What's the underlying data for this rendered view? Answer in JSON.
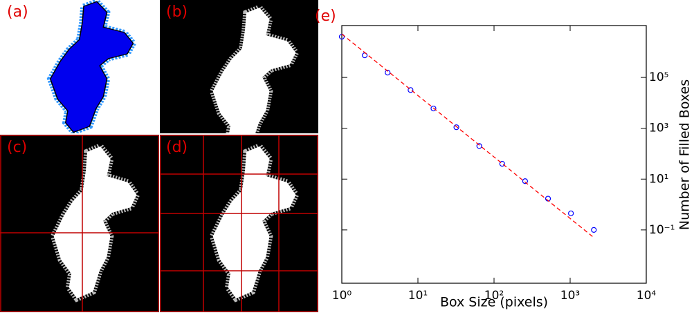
{
  "panels": [
    {
      "label": "(a)"
    },
    {
      "label": "(b)"
    },
    {
      "label": "(c)"
    },
    {
      "label": "(d)"
    }
  ],
  "chart_data": {
    "type": "scatter",
    "label": "(e)",
    "x_label": "Box Size (pixels)",
    "y_label": "Number of Filled Boxes",
    "log_x": true,
    "log_y": true,
    "xlim": [
      1,
      10000
    ],
    "ylim": [
      0.0008,
      11000000
    ],
    "xticks": [
      {
        "value": 1,
        "label": "10⁰"
      },
      {
        "value": 10,
        "label": "10¹"
      },
      {
        "value": 100,
        "label": "10²"
      },
      {
        "value": 1000,
        "label": "10³"
      },
      {
        "value": 10000,
        "label": "10⁴"
      }
    ],
    "yticks": [
      {
        "value": 0.1,
        "label": "10⁻¹"
      },
      {
        "value": 10,
        "label": "10¹"
      },
      {
        "value": 1000,
        "label": "10³"
      },
      {
        "value": 100000,
        "label": "10⁵"
      }
    ],
    "y_axis_side": "right",
    "series": [
      {
        "kind": "points",
        "color": "#0000ff",
        "x": [
          1,
          2,
          4,
          8,
          16,
          32,
          64,
          128,
          256,
          512,
          1024,
          2048
        ],
        "values": [
          4000000,
          740000,
          155000,
          32000,
          6000,
          1100,
          200,
          40,
          8.3,
          1.7,
          0.45,
          0.1
        ]
      },
      {
        "kind": "fit",
        "color": "#ff0000",
        "x": [
          1,
          2048
        ],
        "values": [
          5100000,
          0.05
        ]
      }
    ]
  }
}
